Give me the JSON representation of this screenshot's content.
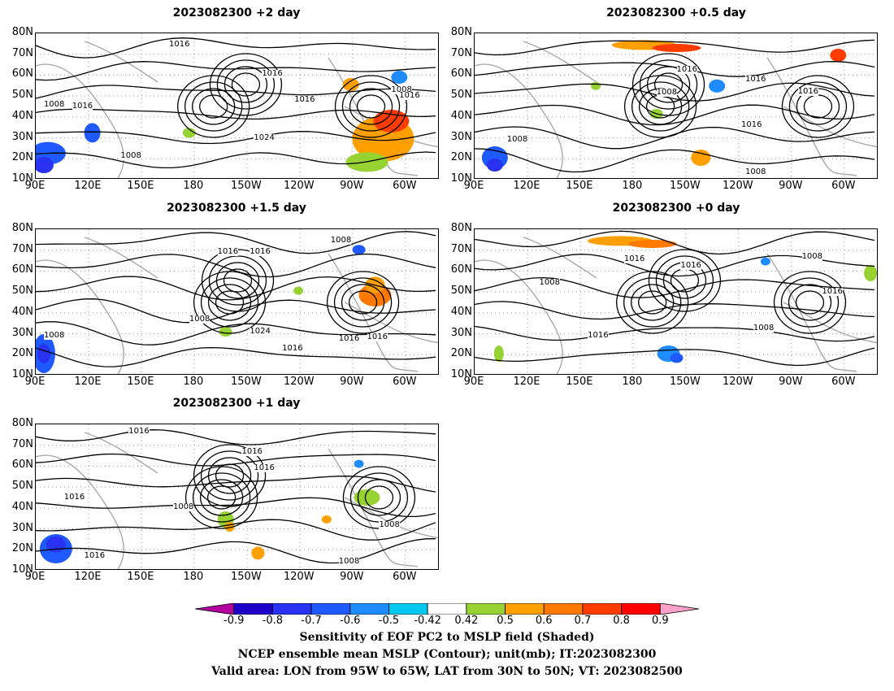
{
  "panels": [
    {
      "title": "2023082300 +2 day",
      "labels": [
        "1016",
        "1016",
        "1008",
        "1016",
        "1016",
        "1024",
        "1008",
        "1008",
        "1016"
      ]
    },
    {
      "title": "2023082300 +0.5 day",
      "labels": [
        "1016",
        "1008",
        "1016",
        "1016",
        "1008",
        "1016",
        "1008"
      ]
    },
    {
      "title": "2023082300 +1.5 day",
      "labels": [
        "1016",
        "1016",
        "1008",
        "1008",
        "1024",
        "1016",
        "1016",
        "1016",
        "1008"
      ]
    },
    {
      "title": "2023082300 +0 day",
      "labels": [
        "1016",
        "1016",
        "1008",
        "1016",
        "1008",
        "1016",
        "1008"
      ]
    },
    {
      "title": "2023082300 +1 day",
      "labels": [
        "1016",
        "1016",
        "1016",
        "1008",
        "1016",
        "1008",
        "1016",
        "1008"
      ]
    }
  ],
  "y_ticks": [
    "80N",
    "70N",
    "60N",
    "50N",
    "40N",
    "30N",
    "20N",
    "10N"
  ],
  "x_ticks": [
    "90E",
    "120E",
    "150E",
    "180",
    "150W",
    "120W",
    "90W",
    "60W"
  ],
  "colorbar": {
    "labels": [
      "-0.9",
      "-0.8",
      "-0.7",
      "-0.6",
      "-0.5",
      "-0.42",
      "0.42",
      "0.5",
      "0.6",
      "0.7",
      "0.8",
      "0.9"
    ],
    "colors": [
      "#b4009e",
      "#1e00c8",
      "#2832f0",
      "#1e5aff",
      "#1e8cff",
      "#00c8f0",
      "#ffffff",
      "#96d232",
      "#ffa000",
      "#ff7800",
      "#ff3c00",
      "#ff0000",
      "#ffa0c8"
    ]
  },
  "caption": {
    "line1": "Sensitivity of EOF PC2 to MSLP field (Shaded)",
    "line2": "NCEP ensemble mean MSLP (Contour); unit(mb); IT:2023082300",
    "line3": "Valid area: LON from 95W to 65W, LAT from 30N to 50N; VT: 2023082500"
  }
}
